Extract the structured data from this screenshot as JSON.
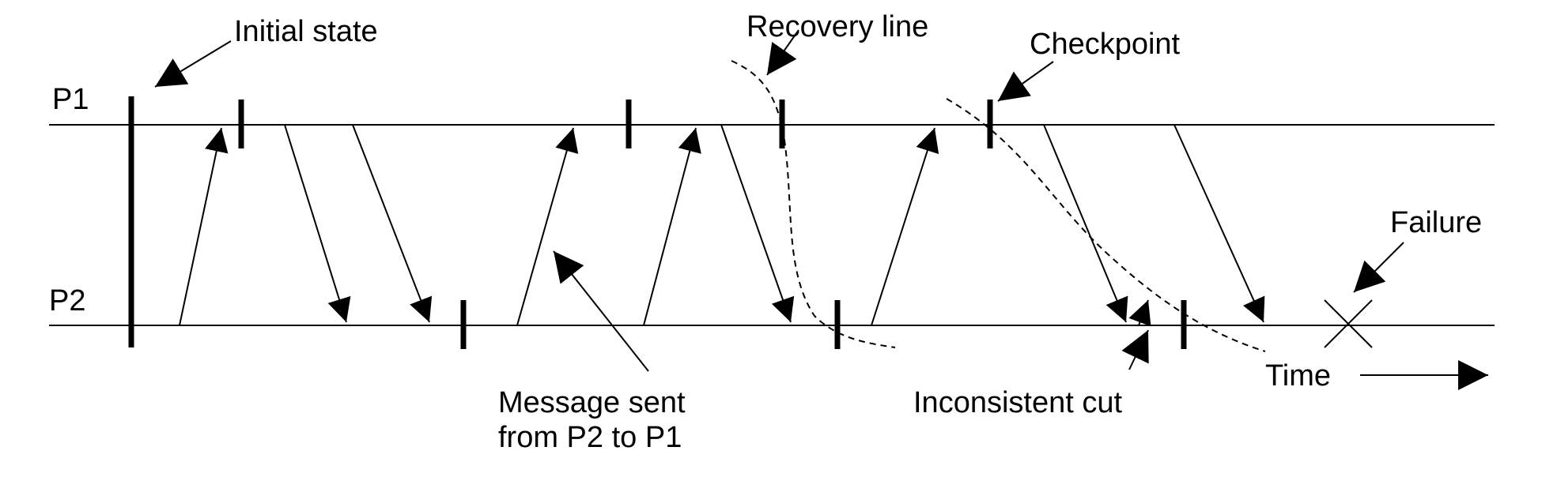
{
  "diagram": {
    "processes": [
      {
        "id": "p1",
        "label": "P1"
      },
      {
        "id": "p2",
        "label": "P2"
      }
    ],
    "annotations": {
      "initial_state": "Initial state",
      "recovery_line": "Recovery line",
      "checkpoint": "Checkpoint",
      "failure": "Failure",
      "time": "Time",
      "inconsistent_cut": "Inconsistent cut",
      "message_line1": "Message sent",
      "message_line2": "from P2 to P1"
    },
    "colors": {
      "ink": "#000000",
      "background": "#ffffff"
    },
    "icons": {
      "failure_marker": "x-mark-icon",
      "time_arrow": "arrow-right-icon"
    }
  }
}
